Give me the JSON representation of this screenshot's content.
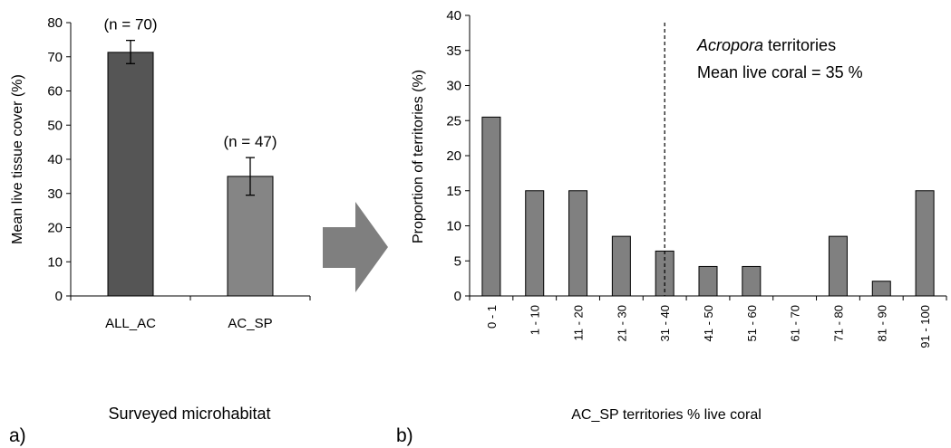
{
  "colors": {
    "left_bar_1": "#555555",
    "left_bar_2": "#858585",
    "right_bars": "#808080",
    "arrow": "#7f7f7f",
    "axis": "#000000"
  },
  "panels": {
    "a_label": "a)",
    "b_label": "b)"
  },
  "chart_data": [
    {
      "type": "bar",
      "panel": "a",
      "categories": [
        "ALL_AC",
        "AC_SP"
      ],
      "values": [
        71.3,
        35.0
      ],
      "error_bars": [
        {
          "low": 68.0,
          "high": 74.8
        },
        {
          "low": 29.5,
          "high": 40.5
        }
      ],
      "annotations": [
        "(n = 70)",
        "(n = 47)"
      ],
      "xlabel": "Surveyed microhabitat",
      "ylabel": "Mean live tissue cover (%)",
      "ylim": [
        0,
        80
      ],
      "yticks": [
        "0",
        "10",
        "20",
        "30",
        "40",
        "50",
        "60",
        "70",
        "80"
      ],
      "grid": false,
      "legend": "none"
    },
    {
      "type": "bar",
      "panel": "b",
      "categories": [
        "0 - 1",
        "1 - 10",
        "11 - 20",
        "21 - 30",
        "31 - 40",
        "41 - 50",
        "51 - 60",
        "61 - 70",
        "71 - 80",
        "81 - 90",
        "91 - 100"
      ],
      "values": [
        25.5,
        15.0,
        15.0,
        8.5,
        6.4,
        4.2,
        4.2,
        0,
        8.5,
        2.1,
        15.0
      ],
      "mean_line_category": "31 - 40",
      "annotation_italic": "Acropora",
      "annotation_line1_rest": " territories",
      "annotation_line2": "Mean live coral  = 35 %",
      "xlabel": "AC_SP territories % live coral",
      "ylabel": "Proportion of territories  (%)",
      "ylim": [
        0,
        40
      ],
      "yticks": [
        "0",
        "5",
        "10",
        "15",
        "20",
        "25",
        "30",
        "35",
        "40"
      ],
      "grid": false,
      "legend": "none"
    }
  ]
}
